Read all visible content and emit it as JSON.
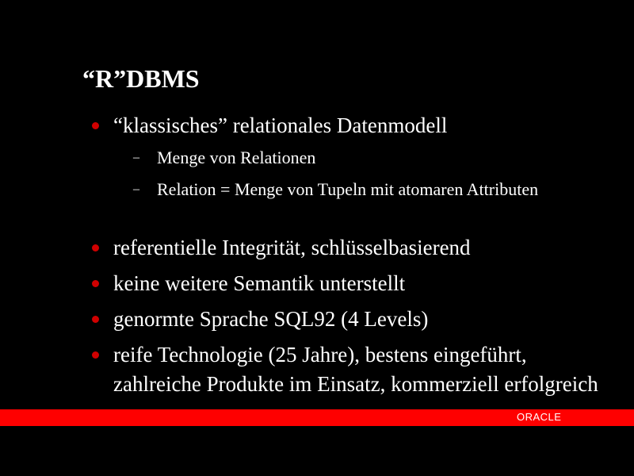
{
  "title": "“R”DBMS",
  "bullets": [
    {
      "text": "“klassisches” relationales Datenmodell",
      "sub": [
        "Menge von Relationen",
        "Relation = Menge von Tupeln mit atomaren Attributen"
      ]
    },
    {
      "text": "referentielle Integrität, schlüsselbasierend"
    },
    {
      "text": "keine weitere Semantik unterstellt"
    },
    {
      "text": "genormte Sprache SQL92 (4 Levels)"
    },
    {
      "text": "reife Technologie (25 Jahre), bestens eingeführt, zahlreiche Produkte im Einsatz, kommerziell erfolgreich"
    }
  ],
  "footer": {
    "logo": "ORACLE",
    "band_color": "#fe0000",
    "bullet_color": "#d00000",
    "dash": "–"
  }
}
